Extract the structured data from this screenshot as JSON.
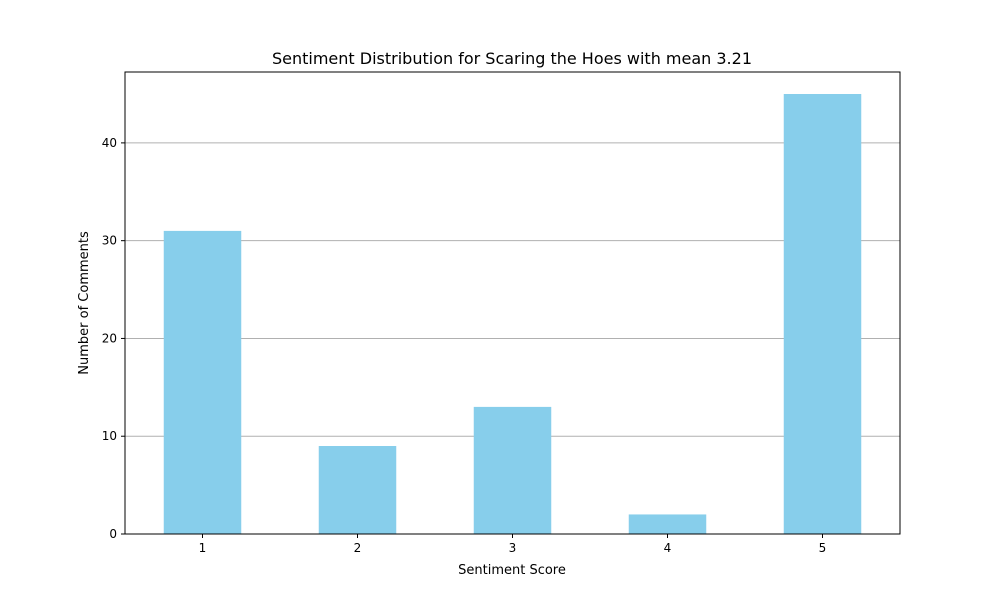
{
  "chart_data": {
    "type": "bar",
    "title": "Sentiment Distribution for Scaring the Hoes with mean 3.21",
    "xlabel": "Sentiment Score",
    "ylabel": "Number of Comments",
    "categories": [
      "1",
      "2",
      "3",
      "4",
      "5"
    ],
    "values": [
      31,
      9,
      13,
      2,
      45
    ],
    "ylim": [
      0,
      47.25
    ],
    "yticks": [
      0,
      10,
      20,
      30,
      40
    ],
    "grid": "horizontal",
    "bar_color": "#87CEEB",
    "grid_color": "#b0b0b0",
    "axis_color": "#000000"
  }
}
